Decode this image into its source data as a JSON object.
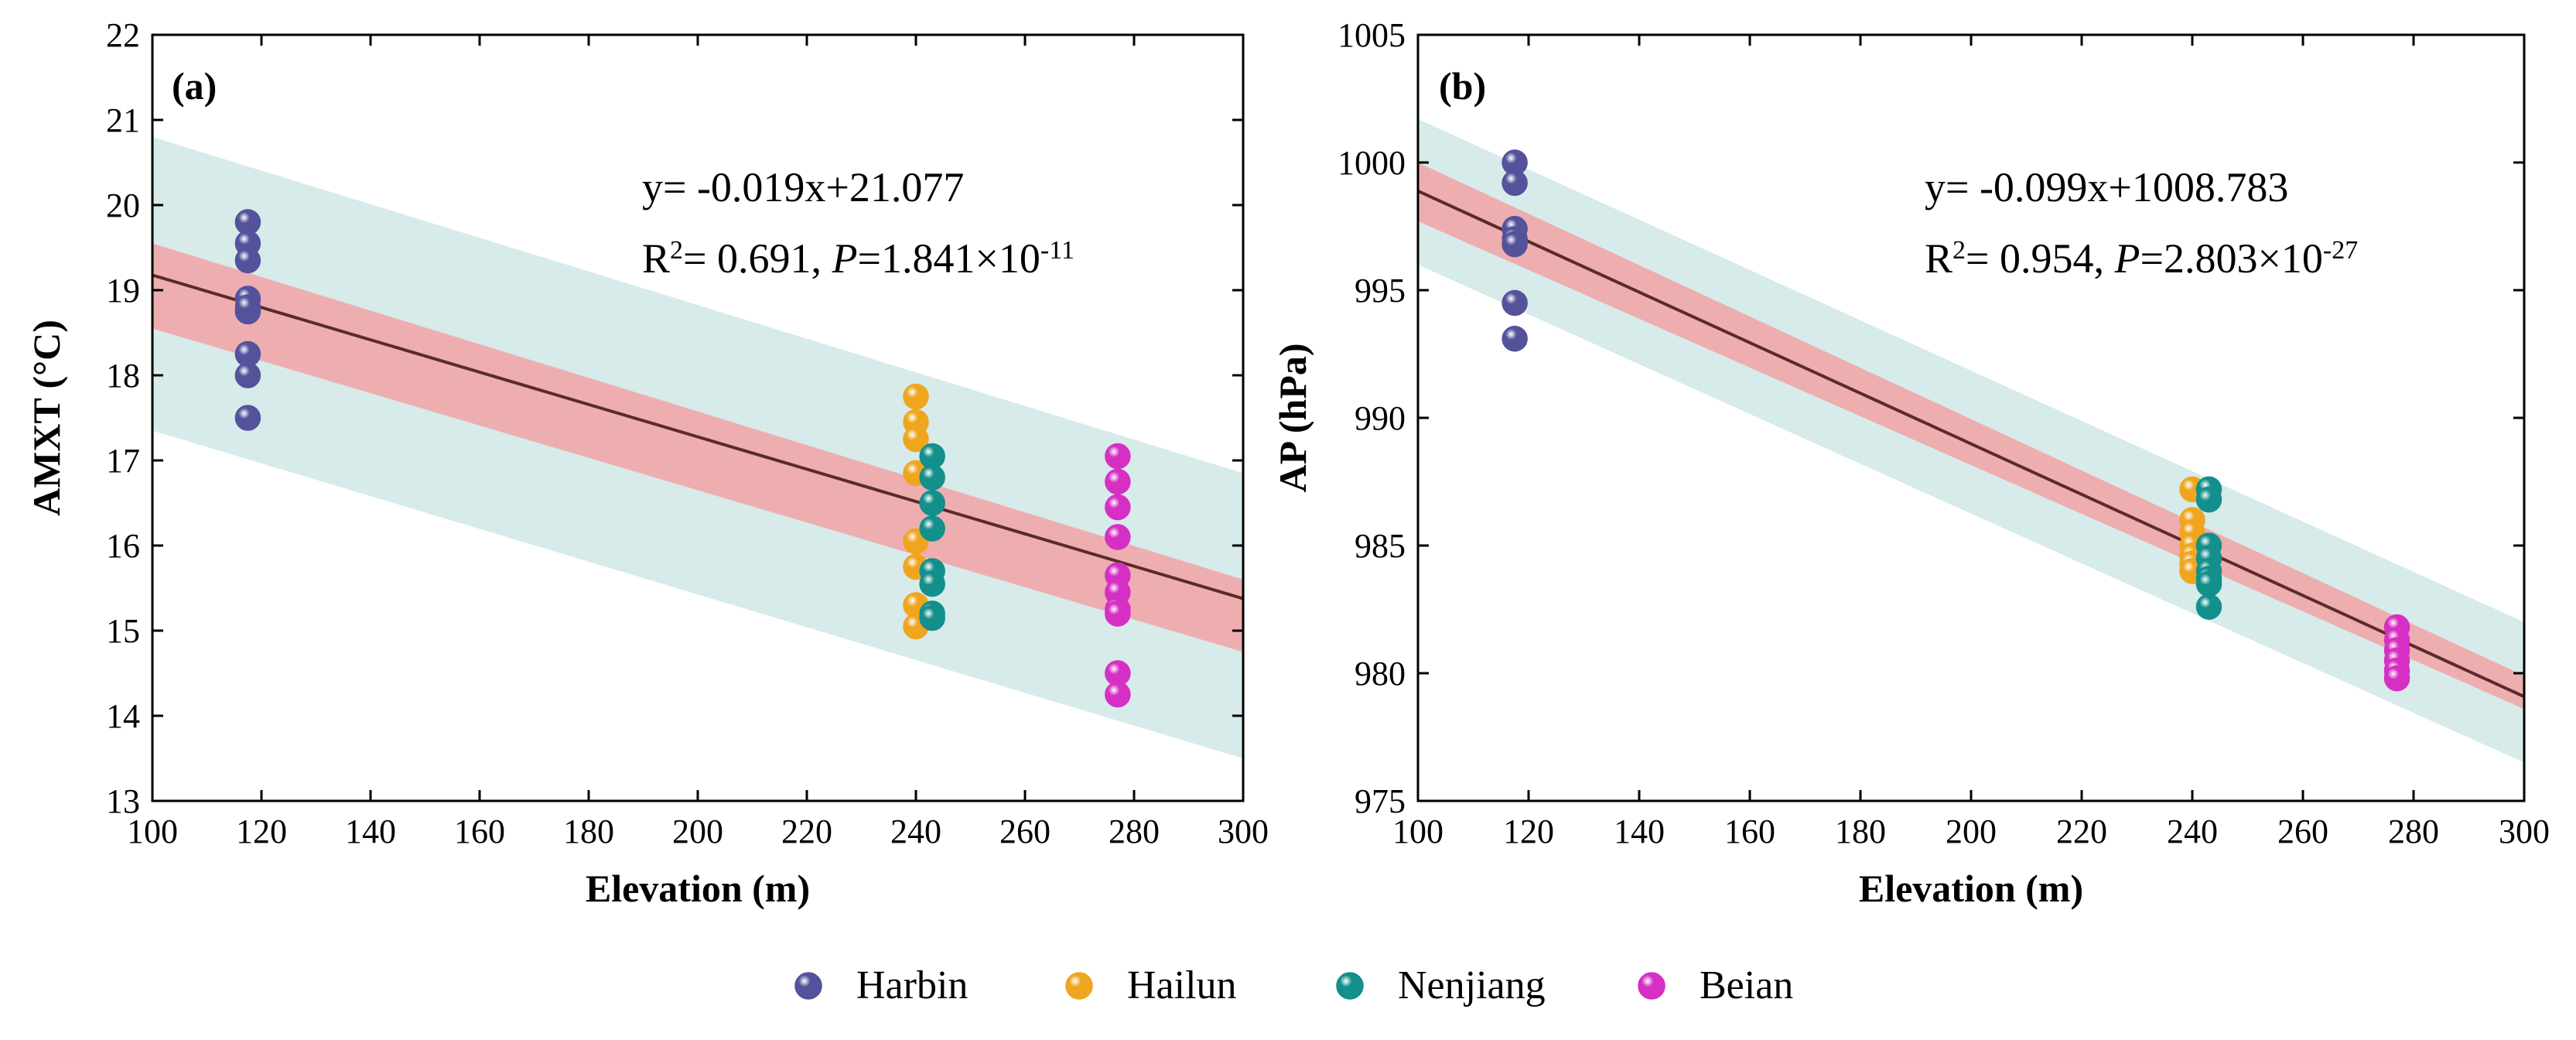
{
  "chart_data": [
    {
      "type": "scatter",
      "panel_label": "(a)",
      "xlabel": "Elevation (m)",
      "ylabel": "AMXT (°C)",
      "xlim": [
        100,
        300
      ],
      "ylim": [
        13,
        22
      ],
      "xticks": [
        100,
        120,
        140,
        160,
        180,
        200,
        220,
        240,
        260,
        280,
        300
      ],
      "yticks": [
        13,
        14,
        15,
        16,
        17,
        18,
        19,
        20,
        21,
        22
      ],
      "equation": "y= -0.019x+21.077",
      "r2_label": "R",
      "r2_value": "= 0.691, ",
      "p_label": "P",
      "p_value": "=1.841×10",
      "p_exp": "-11",
      "fit": {
        "slope": -0.019,
        "intercept": 21.077
      },
      "confidence_band": {
        "x": [
          100,
          300
        ],
        "upper": [
          19.55,
          15.6
        ],
        "lower": [
          18.55,
          14.75
        ]
      },
      "prediction_band": {
        "x": [
          100,
          300
        ],
        "upper": [
          20.8,
          16.85
        ],
        "lower": [
          17.35,
          13.5
        ]
      },
      "series": [
        {
          "name": "Harbin",
          "x": [
            117.5,
            117.5,
            117.5,
            117.5,
            117.5,
            117.5,
            117.5,
            117.5,
            117.5
          ],
          "y": [
            19.8,
            19.55,
            19.35,
            18.9,
            18.75,
            18.25,
            18.0,
            17.5,
            18.8
          ]
        },
        {
          "name": "Hailun",
          "x": [
            240,
            240,
            240,
            240,
            240,
            240,
            240,
            240
          ],
          "y": [
            17.75,
            17.45,
            17.25,
            16.85,
            16.05,
            15.75,
            15.3,
            15.05
          ]
        },
        {
          "name": "Nenjiang",
          "x": [
            243,
            243,
            243,
            243,
            243,
            243,
            243,
            243
          ],
          "y": [
            17.05,
            16.8,
            16.5,
            16.2,
            15.7,
            15.55,
            15.2,
            15.15
          ]
        },
        {
          "name": "Beian",
          "x": [
            277,
            277,
            277,
            277,
            277,
            277,
            277,
            277,
            277,
            277
          ],
          "y": [
            17.05,
            16.75,
            16.45,
            16.1,
            15.65,
            15.45,
            15.25,
            15.2,
            14.5,
            14.25
          ]
        }
      ]
    },
    {
      "type": "scatter",
      "panel_label": "(b)",
      "xlabel": "Elevation (m)",
      "ylabel": "AP (hPa)",
      "xlim": [
        100,
        300
      ],
      "ylim": [
        975,
        1005
      ],
      "xticks": [
        100,
        120,
        140,
        160,
        180,
        200,
        220,
        240,
        260,
        280,
        300
      ],
      "yticks": [
        975,
        980,
        985,
        990,
        995,
        1000,
        1005
      ],
      "equation": "y= -0.099x+1008.783",
      "r2_label": "R",
      "r2_value": "= 0.954, ",
      "p_label": "P",
      "p_value": "=2.803×10",
      "p_exp": "-27",
      "fit": {
        "slope": -0.099,
        "intercept": 1008.783
      },
      "confidence_band": {
        "x": [
          100,
          300
        ],
        "upper": [
          1000.0,
          979.9
        ],
        "lower": [
          997.7,
          978.6
        ]
      },
      "prediction_band": {
        "x": [
          100,
          300
        ],
        "upper": [
          1001.7,
          982.0
        ],
        "lower": [
          996.0,
          976.5
        ]
      },
      "series": [
        {
          "name": "Harbin",
          "x": [
            117.5,
            117.5,
            117.5,
            117.5,
            117.5,
            117.5,
            117.5
          ],
          "y": [
            1000.0,
            999.2,
            997.4,
            997.0,
            996.8,
            994.5,
            993.1
          ]
        },
        {
          "name": "Hailun",
          "x": [
            240,
            240,
            240,
            240,
            240,
            240,
            240
          ],
          "y": [
            987.2,
            986.0,
            985.5,
            985.0,
            984.6,
            984.3,
            984.0
          ]
        },
        {
          "name": "Nenjiang",
          "x": [
            243,
            243,
            243,
            243,
            243,
            243,
            243,
            243
          ],
          "y": [
            987.2,
            986.8,
            985.0,
            984.5,
            984.0,
            983.7,
            983.5,
            982.6
          ]
        },
        {
          "name": "Beian",
          "x": [
            277,
            277,
            277,
            277,
            277,
            277
          ],
          "y": [
            981.8,
            981.3,
            980.9,
            980.5,
            980.1,
            979.8
          ]
        }
      ]
    }
  ],
  "legend": [
    {
      "name": "Harbin",
      "color": "#54529b"
    },
    {
      "name": "Hailun",
      "color": "#f0a51f"
    },
    {
      "name": "Nenjiang",
      "color": "#138f8c"
    },
    {
      "name": "Beian",
      "color": "#d62fc4"
    }
  ],
  "colors": {
    "prediction_band": "#cfe8e6",
    "confidence_band": "#f2a3a6",
    "fit_line": "#5b2b2b"
  }
}
